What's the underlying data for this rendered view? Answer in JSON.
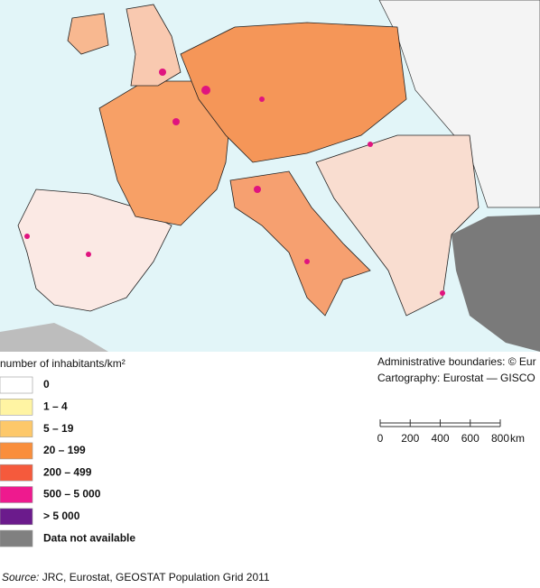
{
  "legend": {
    "title": "number of inhabitants/km²",
    "items": [
      {
        "label": "0",
        "color": "#ffffff"
      },
      {
        "label": "1 – 4",
        "color": "#fff4a3"
      },
      {
        "label": "5 – 19",
        "color": "#fdc86a"
      },
      {
        "label": "20 – 199",
        "color": "#f98e3c"
      },
      {
        "label": "200 – 499",
        "color": "#f55a3c"
      },
      {
        "label": "500 – 5 000",
        "color": "#ee1a8e"
      },
      {
        "label": "> 5 000",
        "color": "#6b1b8c"
      },
      {
        "label": "Data not available",
        "color": "#808080"
      }
    ]
  },
  "credits": [
    "Administrative boundaries: © Eur",
    "Cartography: Eurostat — GISCO"
  ],
  "scale_bar": {
    "ticks": [
      0,
      200,
      400,
      600,
      800
    ],
    "unit": "km"
  },
  "source": {
    "label": "Source:",
    "text": " JRC, Eurostat, GEOSTAT Population Grid 2011"
  }
}
